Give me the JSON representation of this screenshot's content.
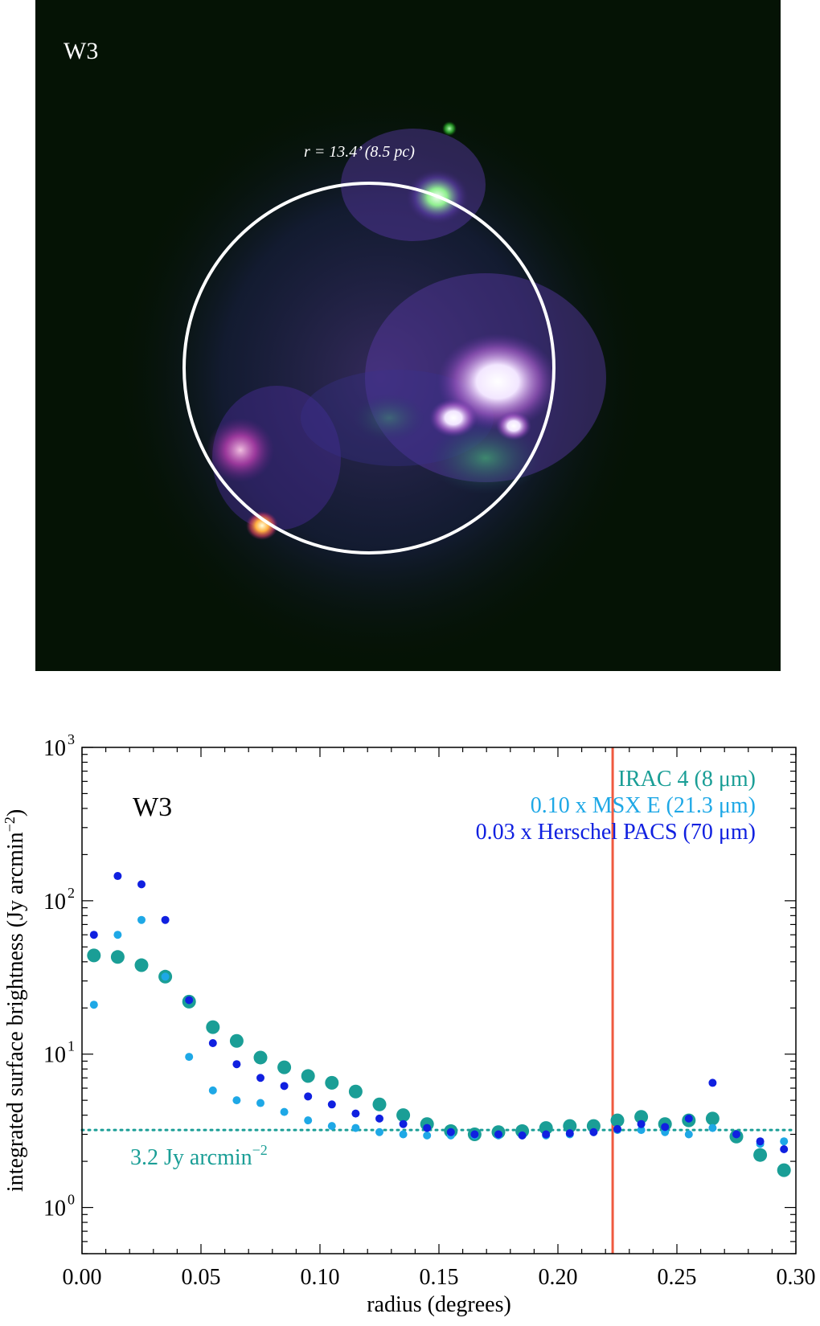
{
  "image_panel": {
    "label": "W3",
    "circle_label": "r = 13.4’ (8.5 pc)"
  },
  "chart_data": {
    "type": "scatter",
    "panel_label": "W3",
    "xlabel": "radius (degrees)",
    "ylabel": "integrated surface brightness (Jy arcmin",
    "ylabel_sup": "−2",
    "ylabel_close": ")",
    "xlim": [
      0.0,
      0.3
    ],
    "ylim": [
      0.5,
      1000
    ],
    "yscale": "log",
    "x_ticks": [
      0.0,
      0.05,
      0.1,
      0.15,
      0.2,
      0.25,
      0.3
    ],
    "x_tick_labels": [
      "0.00",
      "0.05",
      "0.10",
      "0.15",
      "0.20",
      "0.25",
      "0.30"
    ],
    "y_ticks": [
      {
        "value": 1,
        "base": "10",
        "exp": "0"
      },
      {
        "value": 10,
        "base": "10",
        "exp": "1"
      },
      {
        "value": 100,
        "base": "10",
        "exp": "2"
      },
      {
        "value": 1000,
        "base": "10",
        "exp": "3"
      }
    ],
    "reference_line": {
      "y": 3.2,
      "label": "3.2 Jy arcmin",
      "label_sup": "−2",
      "color": "#1a9e96"
    },
    "vertical_line": {
      "x": 0.223,
      "color": "#f05a40"
    },
    "legend_position": "top-right",
    "series": [
      {
        "name": "IRAC 4 (8 μm)",
        "color": "#1a9e96",
        "marker_size": "large",
        "x": [
          0.005,
          0.015,
          0.025,
          0.035,
          0.045,
          0.055,
          0.065,
          0.075,
          0.085,
          0.095,
          0.105,
          0.115,
          0.125,
          0.135,
          0.145,
          0.155,
          0.165,
          0.175,
          0.185,
          0.195,
          0.205,
          0.215,
          0.225,
          0.235,
          0.245,
          0.255,
          0.265,
          0.275,
          0.285,
          0.295
        ],
        "y": [
          44,
          43,
          38,
          32,
          22,
          15,
          12.2,
          9.5,
          8.2,
          7.2,
          6.5,
          5.7,
          4.7,
          4.0,
          3.5,
          3.15,
          3.0,
          3.1,
          3.15,
          3.3,
          3.4,
          3.4,
          3.7,
          3.9,
          3.5,
          3.7,
          3.8,
          2.9,
          2.2,
          1.75
        ]
      },
      {
        "name": "0.10 x MSX E (21.3 μm)",
        "color": "#1ea8e6",
        "marker_size": "small",
        "x": [
          0.005,
          0.015,
          0.025,
          0.035,
          0.045,
          0.055,
          0.065,
          0.075,
          0.085,
          0.095,
          0.105,
          0.115,
          0.125,
          0.135,
          0.145,
          0.155,
          0.165,
          0.175,
          0.185,
          0.195,
          0.205,
          0.215,
          0.225,
          0.235,
          0.245,
          0.255,
          0.265,
          0.275,
          0.285,
          0.295
        ],
        "y": [
          21,
          60,
          75,
          32,
          9.6,
          5.8,
          5.0,
          4.8,
          4.2,
          3.7,
          3.4,
          3.3,
          3.1,
          3.0,
          2.95,
          2.95,
          2.95,
          2.95,
          2.95,
          2.95,
          3.0,
          3.1,
          3.2,
          3.2,
          3.1,
          3.0,
          3.3,
          3.0,
          2.6,
          2.7
        ]
      },
      {
        "name": "0.03 x Herschel PACS (70 μm)",
        "color": "#1020e0",
        "marker_size": "small",
        "x": [
          0.005,
          0.015,
          0.025,
          0.035,
          0.045,
          0.055,
          0.065,
          0.075,
          0.085,
          0.095,
          0.105,
          0.115,
          0.125,
          0.135,
          0.145,
          0.155,
          0.165,
          0.175,
          0.185,
          0.195,
          0.205,
          0.215,
          0.225,
          0.235,
          0.245,
          0.255,
          0.265,
          0.275,
          0.285,
          0.295
        ],
        "y": [
          60,
          145,
          128,
          75,
          22.5,
          11.8,
          8.6,
          7.0,
          6.2,
          5.3,
          4.7,
          4.1,
          3.8,
          3.5,
          3.3,
          3.1,
          3.0,
          3.0,
          2.95,
          3.0,
          3.05,
          3.1,
          3.25,
          3.5,
          3.35,
          3.8,
          6.5,
          3.0,
          2.7,
          2.4
        ]
      }
    ]
  }
}
